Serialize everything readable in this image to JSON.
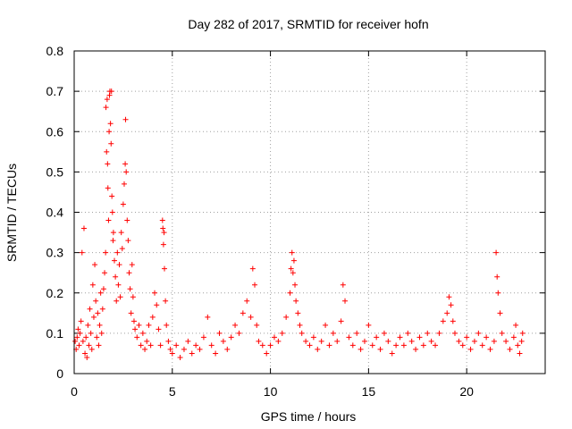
{
  "chart_data": {
    "type": "scatter",
    "title": "Day 282 of 2017, SRMTID for receiver hofn",
    "xlabel": "GPS time / hours",
    "ylabel": "SRMTID / TECUs",
    "xlim": [
      0,
      24
    ],
    "ylim": [
      0,
      0.8
    ],
    "x_ticks": [
      0,
      5,
      10,
      15,
      20
    ],
    "y_ticks": [
      0,
      0.1,
      0.2,
      0.3,
      0.4,
      0.5,
      0.6,
      0.7,
      0.8
    ],
    "grid": true,
    "marker": "+",
    "series_color": "#ff0000",
    "series": [
      {
        "name": "SRMTID",
        "points": [
          [
            0.05,
            0.08
          ],
          [
            0.1,
            0.06
          ],
          [
            0.15,
            0.09
          ],
          [
            0.2,
            0.11
          ],
          [
            0.25,
            0.07
          ],
          [
            0.3,
            0.1
          ],
          [
            0.35,
            0.13
          ],
          [
            0.4,
            0.3
          ],
          [
            0.45,
            0.08
          ],
          [
            0.5,
            0.36
          ],
          [
            0.55,
            0.05
          ],
          [
            0.6,
            0.09
          ],
          [
            0.65,
            0.04
          ],
          [
            0.7,
            0.12
          ],
          [
            0.75,
            0.07
          ],
          [
            0.8,
            0.16
          ],
          [
            0.85,
            0.1
          ],
          [
            0.9,
            0.06
          ],
          [
            0.95,
            0.22
          ],
          [
            1.0,
            0.14
          ],
          [
            1.05,
            0.27
          ],
          [
            1.1,
            0.18
          ],
          [
            1.15,
            0.09
          ],
          [
            1.2,
            0.15
          ],
          [
            1.25,
            0.07
          ],
          [
            1.3,
            0.12
          ],
          [
            1.35,
            0.2
          ],
          [
            1.4,
            0.1
          ],
          [
            1.45,
            0.16
          ],
          [
            1.5,
            0.21
          ],
          [
            1.55,
            0.25
          ],
          [
            1.6,
            0.3
          ],
          [
            1.62,
            0.66
          ],
          [
            1.65,
            0.55
          ],
          [
            1.68,
            0.68
          ],
          [
            1.7,
            0.52
          ],
          [
            1.72,
            0.46
          ],
          [
            1.75,
            0.38
          ],
          [
            1.78,
            0.6
          ],
          [
            1.8,
            0.69
          ],
          [
            1.82,
            0.7
          ],
          [
            1.85,
            0.62
          ],
          [
            1.88,
            0.57
          ],
          [
            1.9,
            0.7
          ],
          [
            1.92,
            0.44
          ],
          [
            1.95,
            0.4
          ],
          [
            1.98,
            0.33
          ],
          [
            2.0,
            0.35
          ],
          [
            2.05,
            0.28
          ],
          [
            2.1,
            0.24
          ],
          [
            2.15,
            0.18
          ],
          [
            2.2,
            0.3
          ],
          [
            2.25,
            0.22
          ],
          [
            2.3,
            0.27
          ],
          [
            2.35,
            0.19
          ],
          [
            2.4,
            0.35
          ],
          [
            2.45,
            0.31
          ],
          [
            2.5,
            0.42
          ],
          [
            2.55,
            0.47
          ],
          [
            2.6,
            0.52
          ],
          [
            2.62,
            0.63
          ],
          [
            2.65,
            0.5
          ],
          [
            2.7,
            0.38
          ],
          [
            2.75,
            0.33
          ],
          [
            2.8,
            0.25
          ],
          [
            2.85,
            0.21
          ],
          [
            2.9,
            0.15
          ],
          [
            2.95,
            0.27
          ],
          [
            3.0,
            0.19
          ],
          [
            3.05,
            0.13
          ],
          [
            3.1,
            0.11
          ],
          [
            3.2,
            0.09
          ],
          [
            3.3,
            0.12
          ],
          [
            3.4,
            0.07
          ],
          [
            3.5,
            0.1
          ],
          [
            3.6,
            0.06
          ],
          [
            3.7,
            0.08
          ],
          [
            3.8,
            0.12
          ],
          [
            3.9,
            0.07
          ],
          [
            4.0,
            0.14
          ],
          [
            4.1,
            0.2
          ],
          [
            4.2,
            0.17
          ],
          [
            4.3,
            0.11
          ],
          [
            4.4,
            0.07
          ],
          [
            4.5,
            0.38
          ],
          [
            4.52,
            0.36
          ],
          [
            4.55,
            0.32
          ],
          [
            4.58,
            0.35
          ],
          [
            4.6,
            0.26
          ],
          [
            4.65,
            0.18
          ],
          [
            4.7,
            0.12
          ],
          [
            4.8,
            0.08
          ],
          [
            4.9,
            0.06
          ],
          [
            5.0,
            0.05
          ],
          [
            5.2,
            0.07
          ],
          [
            5.4,
            0.04
          ],
          [
            5.6,
            0.06
          ],
          [
            5.8,
            0.08
          ],
          [
            6.0,
            0.05
          ],
          [
            6.2,
            0.07
          ],
          [
            6.4,
            0.06
          ],
          [
            6.6,
            0.09
          ],
          [
            6.8,
            0.14
          ],
          [
            7.0,
            0.07
          ],
          [
            7.2,
            0.05
          ],
          [
            7.4,
            0.1
          ],
          [
            7.6,
            0.08
          ],
          [
            7.8,
            0.06
          ],
          [
            8.0,
            0.09
          ],
          [
            8.2,
            0.12
          ],
          [
            8.4,
            0.1
          ],
          [
            8.6,
            0.15
          ],
          [
            8.8,
            0.18
          ],
          [
            9.0,
            0.14
          ],
          [
            9.1,
            0.26
          ],
          [
            9.2,
            0.22
          ],
          [
            9.3,
            0.12
          ],
          [
            9.4,
            0.08
          ],
          [
            9.6,
            0.07
          ],
          [
            9.8,
            0.05
          ],
          [
            10.0,
            0.07
          ],
          [
            10.2,
            0.09
          ],
          [
            10.4,
            0.08
          ],
          [
            10.6,
            0.1
          ],
          [
            10.8,
            0.14
          ],
          [
            11.0,
            0.2
          ],
          [
            11.05,
            0.26
          ],
          [
            11.1,
            0.3
          ],
          [
            11.15,
            0.25
          ],
          [
            11.2,
            0.28
          ],
          [
            11.25,
            0.22
          ],
          [
            11.3,
            0.18
          ],
          [
            11.4,
            0.15
          ],
          [
            11.5,
            0.12
          ],
          [
            11.6,
            0.1
          ],
          [
            11.8,
            0.08
          ],
          [
            12.0,
            0.07
          ],
          [
            12.2,
            0.09
          ],
          [
            12.4,
            0.06
          ],
          [
            12.6,
            0.08
          ],
          [
            12.8,
            0.12
          ],
          [
            13.0,
            0.07
          ],
          [
            13.2,
            0.1
          ],
          [
            13.4,
            0.08
          ],
          [
            13.6,
            0.13
          ],
          [
            13.7,
            0.22
          ],
          [
            13.8,
            0.18
          ],
          [
            14.0,
            0.09
          ],
          [
            14.2,
            0.07
          ],
          [
            14.4,
            0.1
          ],
          [
            14.6,
            0.06
          ],
          [
            14.8,
            0.08
          ],
          [
            15.0,
            0.12
          ],
          [
            15.2,
            0.07
          ],
          [
            15.4,
            0.09
          ],
          [
            15.6,
            0.06
          ],
          [
            15.8,
            0.1
          ],
          [
            16.0,
            0.08
          ],
          [
            16.2,
            0.05
          ],
          [
            16.4,
            0.07
          ],
          [
            16.6,
            0.09
          ],
          [
            16.8,
            0.07
          ],
          [
            17.0,
            0.1
          ],
          [
            17.2,
            0.08
          ],
          [
            17.4,
            0.06
          ],
          [
            17.6,
            0.09
          ],
          [
            17.8,
            0.07
          ],
          [
            18.0,
            0.1
          ],
          [
            18.2,
            0.08
          ],
          [
            18.4,
            0.07
          ],
          [
            18.6,
            0.1
          ],
          [
            18.8,
            0.13
          ],
          [
            19.0,
            0.15
          ],
          [
            19.1,
            0.19
          ],
          [
            19.2,
            0.17
          ],
          [
            19.3,
            0.13
          ],
          [
            19.4,
            0.1
          ],
          [
            19.6,
            0.08
          ],
          [
            19.8,
            0.07
          ],
          [
            20.0,
            0.09
          ],
          [
            20.2,
            0.06
          ],
          [
            20.4,
            0.08
          ],
          [
            20.6,
            0.1
          ],
          [
            20.8,
            0.07
          ],
          [
            21.0,
            0.09
          ],
          [
            21.2,
            0.06
          ],
          [
            21.4,
            0.08
          ],
          [
            21.5,
            0.3
          ],
          [
            21.55,
            0.24
          ],
          [
            21.6,
            0.2
          ],
          [
            21.7,
            0.15
          ],
          [
            21.8,
            0.1
          ],
          [
            22.0,
            0.08
          ],
          [
            22.2,
            0.06
          ],
          [
            22.4,
            0.09
          ],
          [
            22.5,
            0.12
          ],
          [
            22.6,
            0.07
          ],
          [
            22.7,
            0.05
          ],
          [
            22.8,
            0.08
          ],
          [
            22.85,
            0.1
          ]
        ]
      }
    ]
  }
}
